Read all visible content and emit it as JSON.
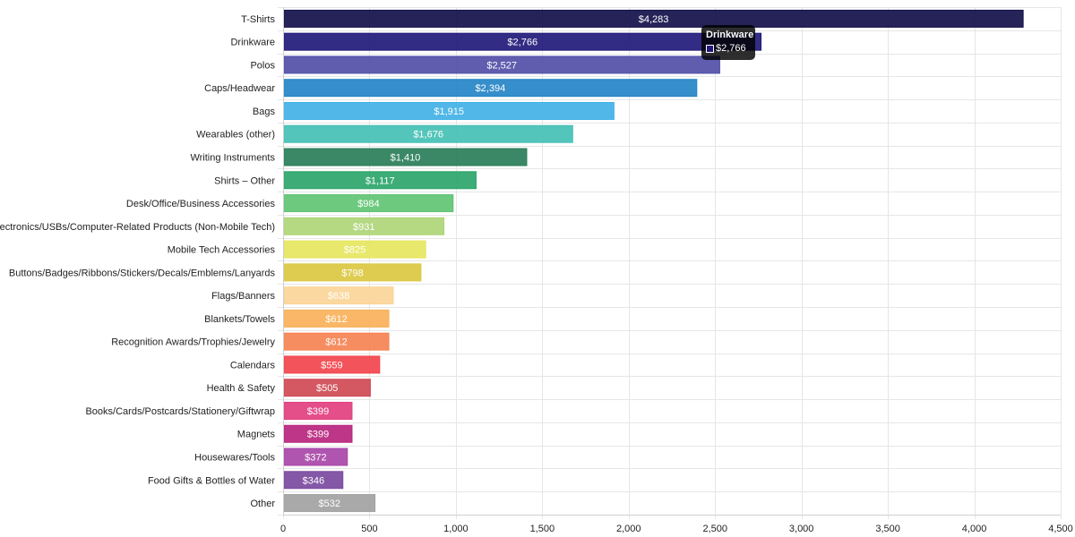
{
  "chart_data": {
    "type": "bar",
    "orientation": "horizontal",
    "categories": [
      "T-Shirts",
      "Drinkware",
      "Polos",
      "Caps/Headwear",
      "Bags",
      "Wearables (other)",
      "Writing Instruments",
      "Shirts – Other",
      "Desk/Office/Business Accessories",
      "Electronics/USBs/Computer-Related Products (Non-Mobile Tech)",
      "Mobile Tech Accessories",
      "Buttons/Badges/Ribbons/Stickers/Decals/Emblems/Lanyards",
      "Flags/Banners",
      "Blankets/Towels",
      "Recognition Awards/Trophies/Jewelry",
      "Calendars",
      "Health & Safety",
      "Books/Cards/Postcards/Stationery/Giftwrap",
      "Magnets",
      "Housewares/Tools",
      "Food Gifts & Bottles of Water",
      "Other"
    ],
    "values": [
      4283,
      2766,
      2527,
      2394,
      1915,
      1676,
      1410,
      1117,
      984,
      931,
      825,
      798,
      638,
      612,
      612,
      559,
      505,
      399,
      399,
      372,
      346,
      532
    ],
    "value_labels": [
      "$4,283",
      "$2,766",
      "$2,527",
      "$2,394",
      "$1,915",
      "$1,676",
      "$1,410",
      "$1,117",
      "$984",
      "$931",
      "$825",
      "$798",
      "$638",
      "$612",
      "$612",
      "$559",
      "$505",
      "$399",
      "$399",
      "$372",
      "$346",
      "$532"
    ],
    "colors": [
      "#14104a",
      "#211a7a",
      "#534fa8",
      "#2584c6",
      "#42b1e6",
      "#45c0b4",
      "#2a7e5a",
      "#2ca56a",
      "#5fc473",
      "#afd578",
      "#e6e660",
      "#dbc842",
      "#fbd597",
      "#f9b15a",
      "#f58353",
      "#f2444c",
      "#cf4a55",
      "#e23f7f",
      "#b8257d",
      "#a846a8",
      "#7a4aa0",
      "#a2a2a2"
    ],
    "xlim": [
      0,
      4500
    ],
    "xticks": [
      0,
      500,
      1000,
      1500,
      2000,
      2500,
      3000,
      3500,
      4000,
      4500
    ],
    "xtick_labels": [
      "0",
      "500",
      "1,000",
      "1,500",
      "2,000",
      "2,500",
      "3,000",
      "3,500",
      "4,000",
      "4,500"
    ],
    "title": "",
    "xlabel": "",
    "ylabel": "",
    "grid": true,
    "legend": "none"
  },
  "tooltip": {
    "title": "Drinkware",
    "value": "$2,766",
    "swatch_color": "#211a7a"
  }
}
